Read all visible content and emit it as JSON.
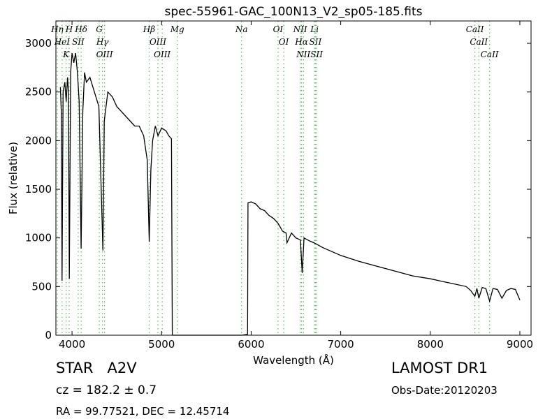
{
  "chart_data": {
    "type": "line",
    "title": "spec-55961-GAC_100N13_V2_sp05-185.fits",
    "x_label": "Wavelength (Å)",
    "y_label": "Flux (relative)",
    "xlim": [
      3820,
      9125
    ],
    "ylim": [
      0,
      3230
    ],
    "xticks": [
      4000,
      5000,
      6000,
      7000,
      8000,
      9000
    ],
    "yticks": [
      0,
      500,
      1000,
      1500,
      2000,
      2500,
      3000
    ],
    "color": "#000000",
    "line_color": "#5cb85c",
    "x": [
      3870,
      3880,
      3889,
      3900,
      3920,
      3935,
      3950,
      3960,
      3970,
      3985,
      4000,
      4020,
      4040,
      4060,
      4080,
      4102,
      4120,
      4140,
      4160,
      4200,
      4250,
      4300,
      4345,
      4360,
      4400,
      4450,
      4500,
      4550,
      4600,
      4650,
      4700,
      4750,
      4800,
      4840,
      4862,
      4880,
      4900,
      4930,
      4960,
      5000,
      5050,
      5080,
      5100,
      5110,
      5120,
      5900,
      5960,
      5965,
      6000,
      6050,
      6100,
      6150,
      6200,
      6250,
      6300,
      6350,
      6390,
      6400,
      6450,
      6500,
      6550,
      6570,
      6590,
      6650,
      6700,
      6800,
      6900,
      7000,
      7200,
      7400,
      7600,
      7800,
      8000,
      8200,
      8400,
      8450,
      8498,
      8520,
      8542,
      8580,
      8620,
      8662,
      8700,
      8750,
      8800,
      8850,
      8900,
      8950,
      9000
    ],
    "values": [
      2550,
      2300,
      560,
      2500,
      2600,
      2400,
      2650,
      2500,
      580,
      2700,
      2900,
      2800,
      2900,
      2700,
      2400,
      890,
      2300,
      2700,
      2600,
      2650,
      2500,
      2350,
      870,
      2200,
      2500,
      2450,
      2350,
      2300,
      2250,
      2200,
      2150,
      2150,
      2050,
      1800,
      960,
      1700,
      2000,
      2150,
      2050,
      2130,
      2100,
      2050,
      2030,
      2020,
      0,
      0,
      10,
      1360,
      1370,
      1350,
      1300,
      1280,
      1230,
      1200,
      1150,
      1070,
      1050,
      950,
      1050,
      1000,
      980,
      640,
      1000,
      970,
      950,
      900,
      860,
      820,
      760,
      710,
      660,
      610,
      580,
      540,
      500,
      460,
      400,
      480,
      380,
      490,
      480,
      350,
      480,
      470,
      380,
      460,
      480,
      470,
      360
    ],
    "spectral_lines": [
      {
        "label": "Hη",
        "wavelength": 3835
      },
      {
        "label": "HeI",
        "wavelength": 3889
      },
      {
        "label": "K",
        "wavelength": 3934
      },
      {
        "label": "H",
        "wavelength": 3968
      },
      {
        "label": "SII",
        "wavelength": 4069
      },
      {
        "label": "Hδ",
        "wavelength": 4102
      },
      {
        "label": "G",
        "wavelength": 4304
      },
      {
        "label": "Hγ",
        "wavelength": 4340
      },
      {
        "label": "OIII",
        "wavelength": 4363
      },
      {
        "label": "Hβ",
        "wavelength": 4861
      },
      {
        "label": "OIII",
        "wavelength": 4959
      },
      {
        "label": "OIII",
        "wavelength": 5007
      },
      {
        "label": "Mg",
        "wavelength": 5175
      },
      {
        "label": "Na",
        "wavelength": 5893
      },
      {
        "label": "OI",
        "wavelength": 6300
      },
      {
        "label": "OI",
        "wavelength": 6364
      },
      {
        "label": "NII",
        "wavelength": 6548
      },
      {
        "label": "Hα",
        "wavelength": 6563
      },
      {
        "label": "NII",
        "wavelength": 6584
      },
      {
        "label": "Li",
        "wavelength": 6708
      },
      {
        "label": "SII",
        "wavelength": 6717
      },
      {
        "label": "SII",
        "wavelength": 6731
      },
      {
        "label": "CaII",
        "wavelength": 8498
      },
      {
        "label": "CaII",
        "wavelength": 8542
      },
      {
        "label": "CaII",
        "wavelength": 8662
      }
    ],
    "object_class": "STAR   A2V",
    "survey": "LAMOST DR1",
    "redshift": "cz = 182.2 ± 0.7",
    "obs_date": "Obs-Date:20120203",
    "coordinates": "RA = 99.77521, DEC = 12.45714"
  }
}
